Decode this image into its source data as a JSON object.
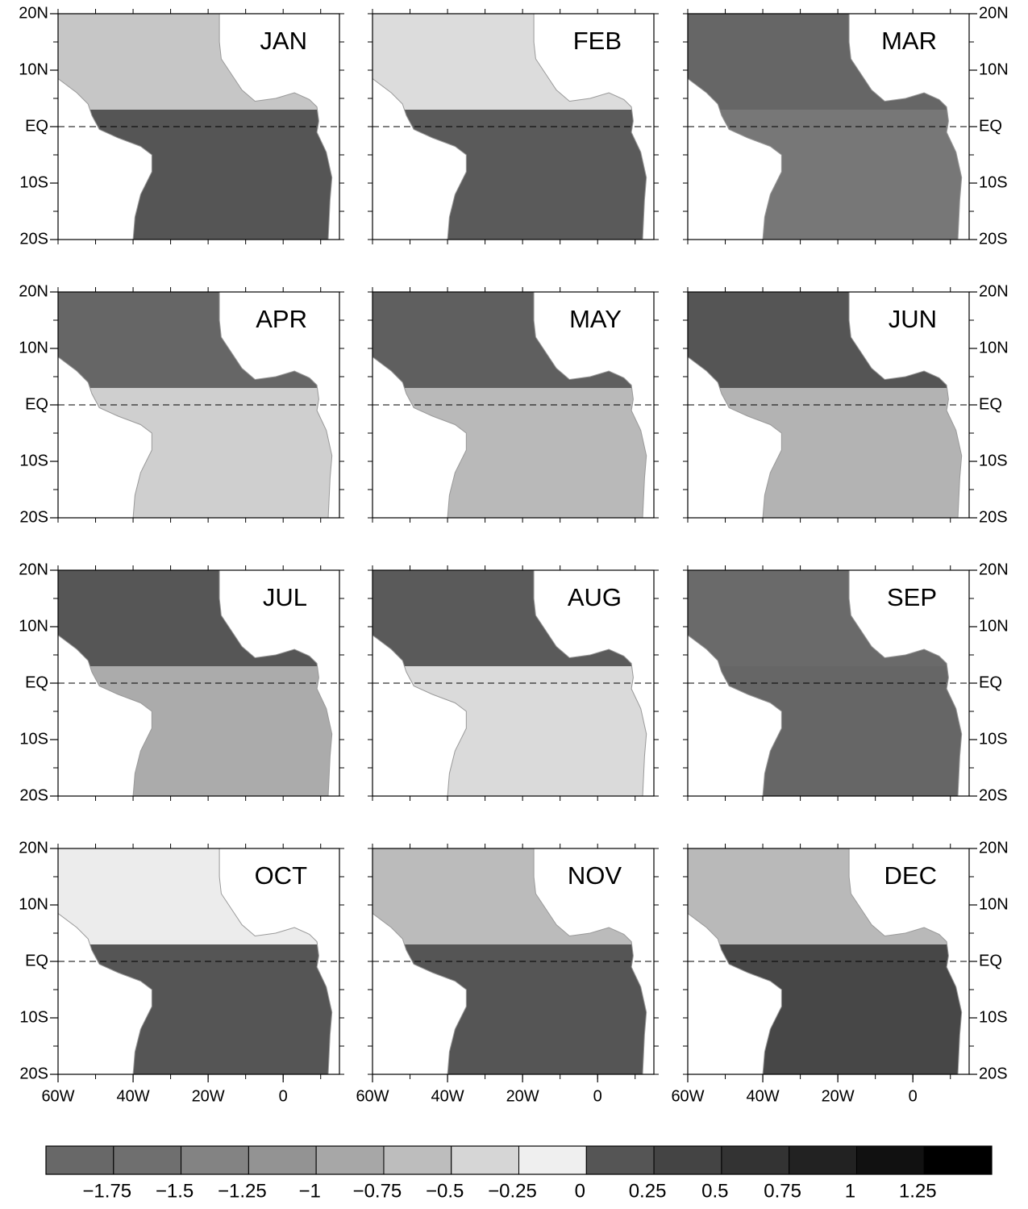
{
  "map": {
    "months": [
      "JAN",
      "FEB",
      "MAR",
      "APR",
      "MAY",
      "JUN",
      "JUL",
      "AUG",
      "SEP",
      "OCT",
      "NOV",
      "DEC"
    ],
    "xlim": [
      -60,
      15
    ],
    "ylim": [
      -20,
      20
    ],
    "lat_ticks": [
      {
        "value": 20,
        "label": "20N"
      },
      {
        "value": 10,
        "label": "10N"
      },
      {
        "value": 0,
        "label": "EQ"
      },
      {
        "value": -10,
        "label": "10S"
      },
      {
        "value": -20,
        "label": "20S"
      }
    ],
    "lon_ticks": [
      {
        "value": -60,
        "label": "60W"
      },
      {
        "value": -40,
        "label": "40W"
      },
      {
        "value": -20,
        "label": "20W"
      },
      0
    ]
  },
  "colorbar": {
    "ticks": [
      {
        "value": -1.75,
        "label": "−1.75"
      },
      {
        "value": -1.5,
        "label": "−1.5"
      },
      {
        "value": -1.25,
        "label": "−1.25"
      },
      {
        "value": -1,
        "label": "−1"
      },
      {
        "value": -0.75,
        "label": "−0.75"
      },
      {
        "value": -0.5,
        "label": "−0.5"
      },
      {
        "value": -0.25,
        "label": "−0.25"
      },
      0,
      0.25,
      0.5,
      0.75,
      1,
      1.25
    ],
    "colors": [
      "#686868",
      "#6f6f6f",
      "#838383",
      "#939393",
      "#a7a7a7",
      "#bdbdbd",
      "#d6d6d6",
      "#efefef",
      "#555555",
      "#444444",
      "#333333",
      "#222222",
      "#111111",
      "#000000"
    ]
  }
}
